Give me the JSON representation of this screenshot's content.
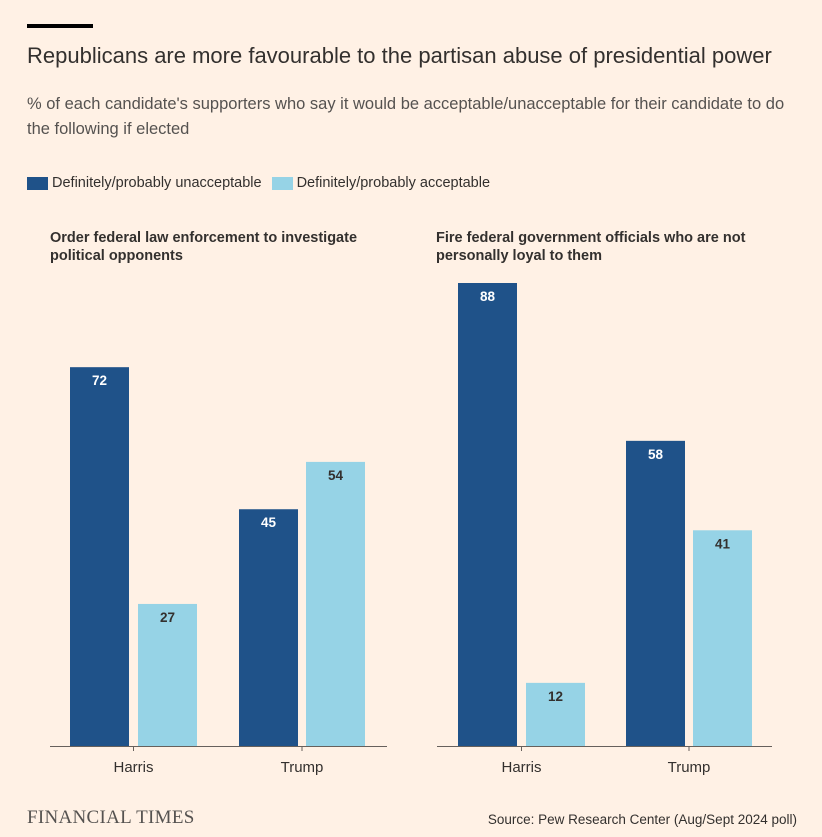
{
  "title": "Republicans are more favourable to the partisan abuse of presidential power",
  "subtitle": "% of each candidate's supporters who say it would be acceptable/unacceptable for their candidate to do the following if elected",
  "legend": [
    {
      "label": "Definitely/probably unacceptable",
      "color": "#1f5289"
    },
    {
      "label": "Definitely/probably acceptable",
      "color": "#96d3e6"
    }
  ],
  "chart_data": [
    {
      "type": "bar",
      "title": "Order federal law enforcement to investigate political opponents",
      "categories": [
        "Harris",
        "Trump"
      ],
      "series": [
        {
          "name": "Definitely/probably unacceptable",
          "values": [
            72,
            45
          ]
        },
        {
          "name": "Definitely/probably acceptable",
          "values": [
            27,
            54
          ]
        }
      ],
      "ylim": [
        0,
        88
      ]
    },
    {
      "type": "bar",
      "title": "Fire federal government officials who are not personally loyal to them",
      "categories": [
        "Harris",
        "Trump"
      ],
      "series": [
        {
          "name": "Definitely/probably unacceptable",
          "values": [
            88,
            58
          ]
        },
        {
          "name": "Definitely/probably acceptable",
          "values": [
            12,
            41
          ]
        }
      ],
      "ylim": [
        0,
        88
      ]
    }
  ],
  "footer": {
    "logo": "FINANCIAL TIMES",
    "source": "Source: Pew Research Center (Aug/Sept 2024 poll)"
  }
}
